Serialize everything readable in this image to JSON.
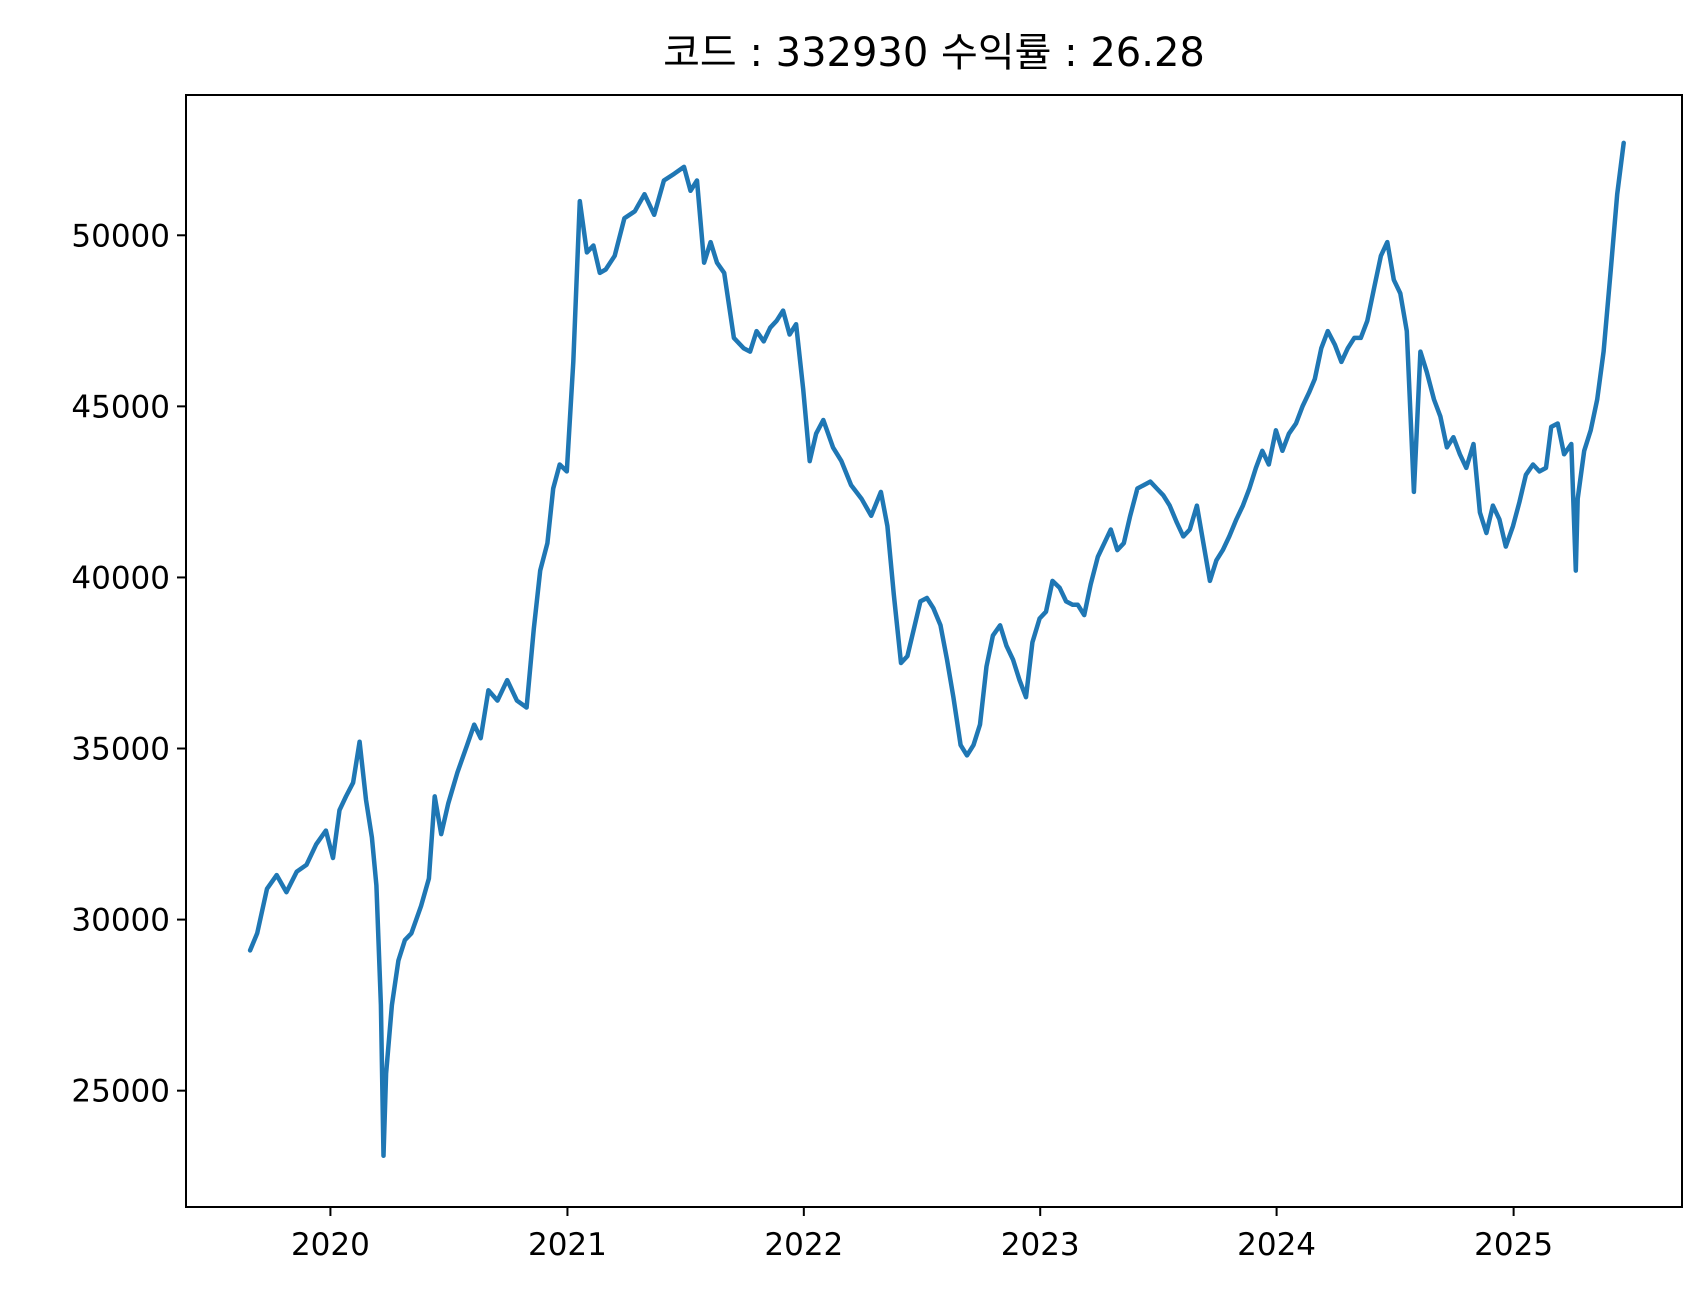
{
  "chart_data": {
    "type": "line",
    "title": "코드 : 332930 수익률 : 26.28",
    "xlabel": "",
    "ylabel": "",
    "xlim": [
      "2019-05-23",
      "2025-09-18"
    ],
    "ylim": [
      21600,
      54100
    ],
    "grid": false,
    "x_ticks": [
      "2020",
      "2021",
      "2022",
      "2023",
      "2024",
      "2025"
    ],
    "y_ticks": [
      "25000",
      "30000",
      "35000",
      "40000",
      "45000",
      "50000"
    ],
    "line_color": "#1f77b4",
    "series": [
      {
        "x": [
          "2019-08-30",
          "2019-09-10",
          "2019-09-25",
          "2019-10-10",
          "2019-10-25",
          "2019-11-10",
          "2019-11-25",
          "2019-12-10",
          "2019-12-25",
          "2020-01-05",
          "2020-01-15",
          "2020-01-25",
          "2020-02-05",
          "2020-02-15",
          "2020-02-25",
          "2020-03-05",
          "2020-03-12",
          "2020-03-19",
          "2020-03-23",
          "2020-03-27",
          "2020-04-05",
          "2020-04-15",
          "2020-04-25",
          "2020-05-05",
          "2020-05-20",
          "2020-06-01",
          "2020-06-10",
          "2020-06-20",
          "2020-07-01",
          "2020-07-15",
          "2020-07-30",
          "2020-08-10",
          "2020-08-20",
          "2020-09-01",
          "2020-09-15",
          "2020-09-30",
          "2020-10-15",
          "2020-10-30",
          "2020-11-10",
          "2020-11-20",
          "2020-12-01",
          "2020-12-10",
          "2020-12-20",
          "2020-12-31",
          "2021-01-10",
          "2021-01-20",
          "2021-01-31",
          "2021-02-10",
          "2021-02-20",
          "2021-03-01",
          "2021-03-15",
          "2021-03-30",
          "2021-04-15",
          "2021-04-30",
          "2021-05-15",
          "2021-05-30",
          "2021-06-15",
          "2021-06-30",
          "2021-07-10",
          "2021-07-20",
          "2021-07-31",
          "2021-08-10",
          "2021-08-20",
          "2021-08-31",
          "2021-09-15",
          "2021-09-30",
          "2021-10-10",
          "2021-10-20",
          "2021-10-31",
          "2021-11-10",
          "2021-11-20",
          "2021-11-30",
          "2021-12-10",
          "2021-12-20",
          "2021-12-31",
          "2022-01-10",
          "2022-01-20",
          "2022-01-31",
          "2022-02-15",
          "2022-02-28",
          "2022-03-15",
          "2022-03-31",
          "2022-04-15",
          "2022-04-30",
          "2022-05-10",
          "2022-05-20",
          "2022-05-31",
          "2022-06-10",
          "2022-06-20",
          "2022-06-30",
          "2022-07-10",
          "2022-07-20",
          "2022-07-31",
          "2022-08-10",
          "2022-08-20",
          "2022-08-31",
          "2022-09-10",
          "2022-09-20",
          "2022-09-30",
          "2022-10-10",
          "2022-10-20",
          "2022-10-31",
          "2022-11-10",
          "2022-11-20",
          "2022-11-30",
          "2022-12-10",
          "2022-12-20",
          "2022-12-31",
          "2023-01-10",
          "2023-01-20",
          "2023-01-31",
          "2023-02-10",
          "2023-02-20",
          "2023-02-28",
          "2023-03-10",
          "2023-03-20",
          "2023-03-31",
          "2023-04-10",
          "2023-04-20",
          "2023-04-30",
          "2023-05-10",
          "2023-05-20",
          "2023-05-31",
          "2023-06-10",
          "2023-06-20",
          "2023-06-30",
          "2023-07-10",
          "2023-07-20",
          "2023-07-31",
          "2023-08-10",
          "2023-08-20",
          "2023-08-31",
          "2023-09-10",
          "2023-09-20",
          "2023-09-30",
          "2023-10-10",
          "2023-10-20",
          "2023-10-31",
          "2023-11-10",
          "2023-11-20",
          "2023-11-30",
          "2023-12-10",
          "2023-12-20",
          "2023-12-31",
          "2024-01-10",
          "2024-01-20",
          "2024-01-31",
          "2024-02-10",
          "2024-02-20",
          "2024-02-29",
          "2024-03-10",
          "2024-03-20",
          "2024-03-31",
          "2024-04-10",
          "2024-04-20",
          "2024-04-30",
          "2024-05-10",
          "2024-05-20",
          "2024-05-31",
          "2024-06-10",
          "2024-06-20",
          "2024-06-30",
          "2024-07-10",
          "2024-07-20",
          "2024-07-31",
          "2024-08-05",
          "2024-08-10",
          "2024-08-20",
          "2024-08-31",
          "2024-09-10",
          "2024-09-20",
          "2024-09-30",
          "2024-10-10",
          "2024-10-20",
          "2024-10-31",
          "2024-11-10",
          "2024-11-20",
          "2024-11-30",
          "2024-12-10",
          "2024-12-20",
          "2024-12-31",
          "2025-01-10",
          "2025-01-20",
          "2025-01-31",
          "2025-02-10",
          "2025-02-20",
          "2025-02-28",
          "2025-03-10",
          "2025-03-20",
          "2025-03-31",
          "2025-04-07",
          "2025-04-10",
          "2025-04-20",
          "2025-04-30",
          "2025-05-10",
          "2025-05-20",
          "2025-05-31",
          "2025-06-10",
          "2025-06-20"
        ],
        "y": [
          29100,
          29600,
          30900,
          31300,
          30800,
          31400,
          31600,
          32200,
          32600,
          31800,
          33200,
          33600,
          34000,
          35200,
          33500,
          32400,
          31000,
          27500,
          23100,
          25500,
          27500,
          28800,
          29400,
          29600,
          30400,
          31200,
          33600,
          32500,
          33400,
          34300,
          35100,
          35700,
          35300,
          36700,
          36400,
          37000,
          36400,
          36200,
          38500,
          40200,
          41000,
          42600,
          43300,
          43100,
          46300,
          51000,
          49500,
          49700,
          48900,
          49000,
          49400,
          50500,
          50700,
          51200,
          50600,
          51600,
          51800,
          52000,
          51300,
          51600,
          49200,
          49800,
          49200,
          48900,
          47000,
          46700,
          46600,
          47200,
          46900,
          47300,
          47500,
          47800,
          47100,
          47400,
          45500,
          43400,
          44200,
          44600,
          43800,
          43400,
          42700,
          42300,
          41800,
          42500,
          41500,
          39500,
          37500,
          37700,
          38500,
          39300,
          39400,
          39100,
          38600,
          37600,
          36500,
          35100,
          34800,
          35100,
          35700,
          37400,
          38300,
          38600,
          38000,
          37600,
          37000,
          36500,
          38100,
          38800,
          39000,
          39900,
          39700,
          39300,
          39200,
          39200,
          38900,
          39800,
          40600,
          41000,
          41400,
          40800,
          41000,
          41800,
          42600,
          42700,
          42800,
          42600,
          42400,
          42100,
          41600,
          41200,
          41400,
          42100,
          41000,
          39900,
          40500,
          40800,
          41200,
          41700,
          42100,
          42600,
          43200,
          43700,
          43300,
          44300,
          43700,
          44200,
          44500,
          45000,
          45400,
          45800,
          46700,
          47200,
          46800,
          46300,
          46700,
          47000,
          47000,
          47500,
          48500,
          49400,
          49800,
          48700,
          48300,
          47200,
          42500,
          44500,
          46600,
          46000,
          45200,
          44700,
          43800,
          44100,
          43600,
          43200,
          43900,
          41900,
          41300,
          42100,
          41700,
          40900,
          41500,
          42200,
          43000,
          43300,
          43100,
          43200,
          44400,
          44500,
          43600,
          43900,
          40200,
          42300,
          43700,
          44300,
          45200,
          46600,
          49000,
          51200,
          52700
        ]
      }
    ]
  }
}
